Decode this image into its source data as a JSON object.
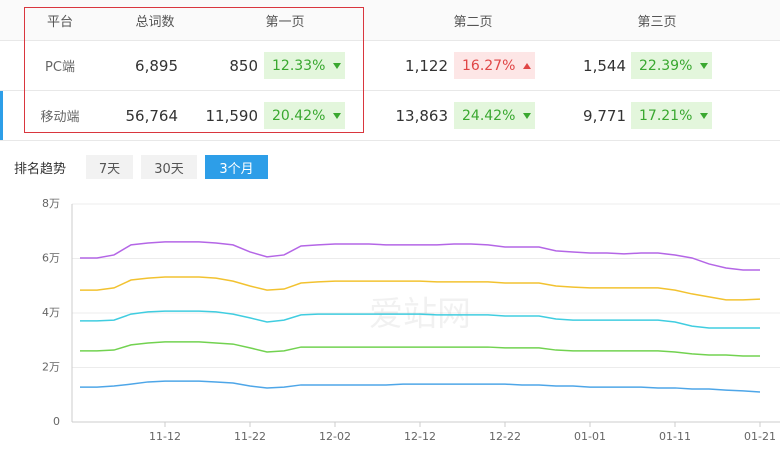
{
  "table": {
    "header": [
      "平台",
      "总词数",
      "第一页",
      "第二页",
      "第三页"
    ],
    "rows": [
      [
        "PC端",
        "6,895",
        "850",
        "12.33%",
        "1,122",
        "16.27%",
        "1,544",
        "22.39%"
      ],
      [
        "移动端",
        "56,764",
        "11,590",
        "20.42%",
        "13,863",
        "24.42%",
        "9,771",
        "17.21%"
      ]
    ]
  },
  "tabs": {
    "label": "排名趋势",
    "options": [
      "7天",
      "30天",
      "3个月"
    ]
  },
  "chart_data": {
    "type": "line",
    "watermark": "爱站网",
    "categories": [
      null,
      null,
      null,
      null,
      null,
      "11-12",
      null,
      null,
      null,
      null,
      "11-22",
      null,
      null,
      null,
      null,
      "12-02",
      null,
      null,
      null,
      null,
      "12-12",
      null,
      null,
      null,
      null,
      "12-22",
      null,
      null,
      null,
      null,
      "01-01",
      null,
      null,
      null,
      null,
      "01-11",
      null,
      null,
      null,
      null,
      "01-21"
    ],
    "ylim": [
      0,
      80000
    ],
    "yticks": [
      0,
      {
        "value": 20000,
        "label": "2万"
      },
      {
        "value": 40000,
        "label": "4万"
      },
      {
        "value": 60000,
        "label": "6万"
      },
      {
        "value": 80000,
        "label": "8万"
      }
    ],
    "grid": true,
    "series": [
      {
        "color": "#b466e6",
        "values": [
          60200,
          60200,
          61300,
          65000,
          65700,
          66100,
          66100,
          66100,
          65700,
          65000,
          62400,
          60600,
          61300,
          64600,
          65000,
          65300,
          65300,
          65300,
          65000,
          65000,
          65000,
          65000,
          65300,
          65300,
          65000,
          64200,
          64200,
          64200,
          62800,
          62400,
          62000,
          62000,
          61700,
          62000,
          62000,
          61300,
          60200,
          58000,
          56500,
          55800,
          55800
        ]
      },
      {
        "color": "#f2c230",
        "values": [
          48400,
          48400,
          49200,
          52100,
          52800,
          53200,
          53200,
          53200,
          52800,
          51700,
          49900,
          48400,
          48800,
          51000,
          51400,
          51700,
          51700,
          51700,
          51700,
          51700,
          51700,
          51400,
          51400,
          51400,
          51400,
          51000,
          51000,
          51000,
          49900,
          49500,
          49200,
          49200,
          49200,
          49200,
          49200,
          48400,
          47000,
          45900,
          44800,
          44800,
          45100
        ]
      },
      {
        "color": "#40cde0",
        "values": [
          37100,
          37100,
          37400,
          39600,
          40400,
          40700,
          40700,
          40700,
          40400,
          39600,
          38200,
          36700,
          37400,
          39300,
          39600,
          39600,
          39600,
          39600,
          39600,
          39600,
          39600,
          39300,
          39300,
          39300,
          39300,
          38900,
          38900,
          38900,
          37800,
          37400,
          37400,
          37400,
          37400,
          37400,
          37400,
          36700,
          35200,
          34500,
          34500,
          34500,
          34500
        ]
      },
      {
        "color": "#72d250",
        "values": [
          26100,
          26100,
          26400,
          28300,
          29000,
          29400,
          29400,
          29400,
          29000,
          28600,
          27200,
          25700,
          26100,
          27500,
          27500,
          27500,
          27500,
          27500,
          27500,
          27500,
          27500,
          27500,
          27500,
          27500,
          27500,
          27200,
          27200,
          27200,
          26400,
          26100,
          26100,
          26100,
          26100,
          26100,
          26100,
          25700,
          25000,
          24600,
          24600,
          24200,
          24200
        ]
      },
      {
        "color": "#4ea6e8",
        "values": [
          12800,
          12800,
          13200,
          13900,
          14700,
          15000,
          15000,
          15000,
          14700,
          14300,
          13200,
          12500,
          12800,
          13600,
          13600,
          13600,
          13600,
          13600,
          13600,
          13900,
          13900,
          13900,
          13900,
          13900,
          13900,
          13900,
          13600,
          13600,
          13200,
          13200,
          12800,
          12800,
          12800,
          12800,
          12500,
          12500,
          12100,
          12100,
          11700,
          11400,
          11000
        ]
      }
    ]
  }
}
